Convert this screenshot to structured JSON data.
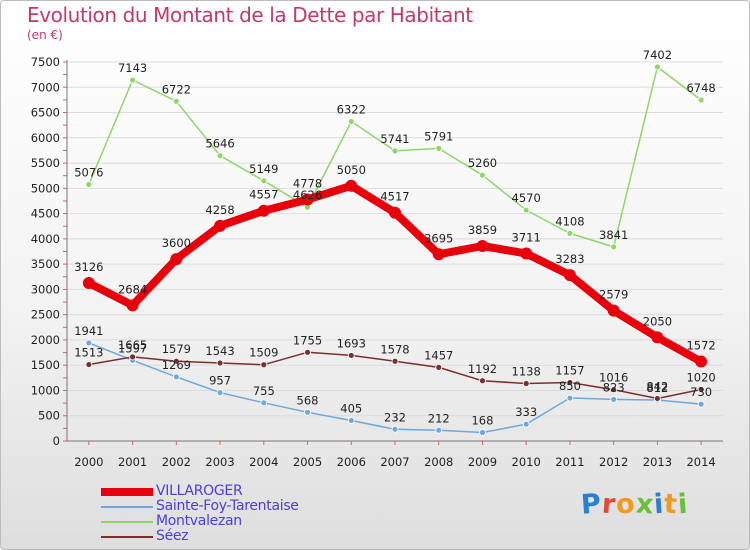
{
  "title": "Evolution du Montant de la Dette par Habitant",
  "subtitle": "(en €)",
  "logo": {
    "text": "Proxiti",
    "letter_colors": [
      "#2a7fd4",
      "#e0483a",
      "#f29a1c",
      "#6abf3a",
      "#2a7fd4",
      "#f29a1c",
      "#6abf3a"
    ]
  },
  "chart_data": {
    "type": "line",
    "x": [
      "2000",
      "2001",
      "2002",
      "2003",
      "2004",
      "2005",
      "2006",
      "2007",
      "2008",
      "2009",
      "2010",
      "2011",
      "2012",
      "2013",
      "2014"
    ],
    "ylim": [
      0,
      7500
    ],
    "yticks": [
      0,
      500,
      1000,
      1500,
      2000,
      2500,
      3000,
      3500,
      4000,
      4500,
      5000,
      5500,
      6000,
      6500,
      7000,
      7500
    ],
    "grid": true,
    "legend_position": "bottom-left",
    "series": [
      {
        "name": "VILLAROGER",
        "color": "#e8000b",
        "width": 8,
        "values": [
          3126,
          2684,
          3600,
          4258,
          4557,
          4778,
          5050,
          4517,
          3695,
          3859,
          3711,
          3283,
          2579,
          2050,
          1572
        ]
      },
      {
        "name": "Sainte-Foy-Tarentaise",
        "color": "#6fa8dc",
        "width": 1.5,
        "values": [
          1941,
          1597,
          1269,
          957,
          755,
          568,
          405,
          232,
          212,
          168,
          333,
          850,
          823,
          812,
          730
        ]
      },
      {
        "name": "Montvalezan",
        "color": "#8fd66a",
        "width": 1.5,
        "values": [
          5076,
          7143,
          6722,
          5646,
          5149,
          4626,
          6322,
          5741,
          5791,
          5260,
          4570,
          4108,
          3841,
          7402,
          6748
        ]
      },
      {
        "name": "Séez",
        "color": "#7a2e2e",
        "width": 1.5,
        "values": [
          1513,
          1665,
          1579,
          1543,
          1509,
          1755,
          1693,
          1578,
          1457,
          1192,
          1138,
          1157,
          1016,
          842,
          1020
        ]
      }
    ]
  }
}
